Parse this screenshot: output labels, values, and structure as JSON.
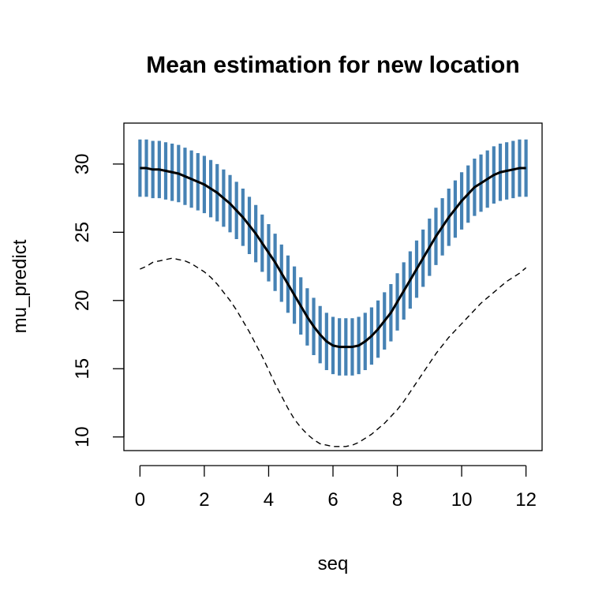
{
  "chart_data": {
    "type": "line",
    "title": "Mean estimation for new location",
    "xlabel": "seq",
    "ylabel": "mu_predict",
    "xlim": [
      -0.5,
      12.5
    ],
    "ylim": [
      9,
      33
    ],
    "x_ticks": [
      0,
      2,
      4,
      6,
      8,
      10,
      12
    ],
    "y_ticks": [
      10,
      15,
      20,
      25,
      30
    ],
    "grid": false,
    "colors": {
      "interval": "#4682b4",
      "mean": "#000000",
      "observed": "#000000"
    },
    "x": [
      0,
      0.2,
      0.4,
      0.6,
      0.8,
      1,
      1.2,
      1.4,
      1.6,
      1.8,
      2,
      2.2,
      2.4,
      2.6,
      2.8,
      3,
      3.2,
      3.4,
      3.6,
      3.8,
      4,
      4.2,
      4.4,
      4.6,
      4.8,
      5,
      5.2,
      5.4,
      5.6,
      5.8,
      6,
      6.2,
      6.4,
      6.6,
      6.8,
      7,
      7.2,
      7.4,
      7.6,
      7.8,
      8,
      8.2,
      8.4,
      8.6,
      8.8,
      9,
      9.2,
      9.4,
      9.6,
      9.8,
      10,
      10.2,
      10.4,
      10.6,
      10.8,
      11,
      11.2,
      11.4,
      11.6,
      11.8,
      12
    ],
    "series": [
      {
        "style": "solid",
        "values": [
          29.7,
          29.7,
          29.6,
          29.6,
          29.5,
          29.4,
          29.3,
          29.1,
          28.9,
          28.7,
          28.5,
          28.2,
          27.9,
          27.5,
          27.1,
          26.6,
          26.1,
          25.5,
          24.9,
          24.2,
          23.5,
          22.8,
          22.0,
          21.2,
          20.4,
          19.6,
          18.8,
          18.1,
          17.5,
          17.0,
          16.7,
          16.6,
          16.6,
          16.6,
          16.7,
          17.0,
          17.4,
          17.9,
          18.5,
          19.1,
          19.9,
          20.7,
          21.5,
          22.3,
          23.1,
          23.9,
          24.7,
          25.4,
          26.1,
          26.7,
          27.3,
          27.8,
          28.3,
          28.6,
          28.9,
          29.2,
          29.4,
          29.5,
          29.6,
          29.7,
          29.7
        ]
      },
      {
        "style": "dashed",
        "values": [
          22.3,
          22.5,
          22.8,
          22.9,
          23.0,
          23.1,
          23.0,
          22.9,
          22.7,
          22.4,
          22.1,
          21.7,
          21.2,
          20.6,
          20.0,
          19.3,
          18.5,
          17.7,
          16.8,
          15.9,
          14.9,
          13.9,
          13.0,
          12.1,
          11.3,
          10.7,
          10.2,
          9.8,
          9.5,
          9.4,
          9.3,
          9.3,
          9.3,
          9.4,
          9.6,
          9.9,
          10.2,
          10.6,
          11.0,
          11.5,
          12.0,
          12.6,
          13.3,
          14.0,
          14.7,
          15.4,
          16.1,
          16.7,
          17.3,
          17.8,
          18.3,
          18.8,
          19.3,
          19.8,
          20.2,
          20.6,
          21.0,
          21.4,
          21.7,
          22.0,
          22.4
        ]
      }
    ],
    "interval_half_width": 2.1
  }
}
